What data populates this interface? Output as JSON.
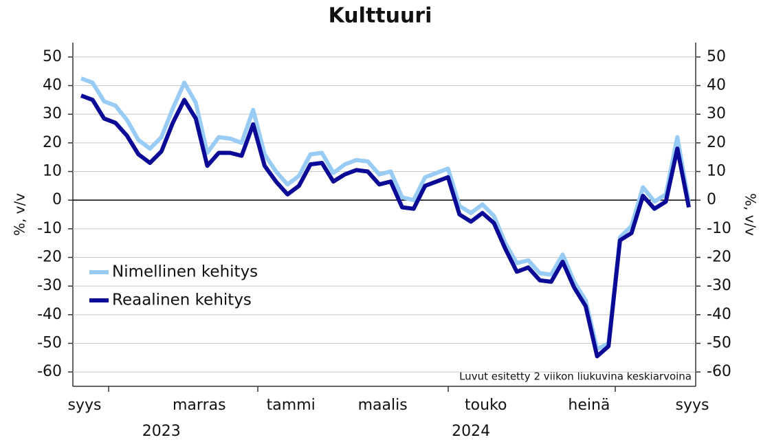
{
  "chart_data": {
    "type": "line",
    "title": "Kulttuuri",
    "ylabel": "%, v/v",
    "y2label": "%, v/v",
    "annotation": "Luvut esitetty 2 viikon liukuvina keskiarvoina",
    "categories": [
      "syys",
      null,
      null,
      null,
      null,
      null,
      null,
      null,
      null,
      null,
      "marras",
      null,
      null,
      null,
      null,
      null,
      null,
      null,
      "tammi",
      null,
      null,
      null,
      null,
      null,
      null,
      null,
      "maalis",
      null,
      null,
      null,
      null,
      null,
      null,
      null,
      null,
      "touko",
      null,
      null,
      null,
      null,
      null,
      null,
      null,
      null,
      "heinä",
      null,
      null,
      null,
      null,
      null,
      null,
      null,
      null,
      "syys"
    ],
    "years": [
      null,
      null,
      null,
      null,
      null,
      null,
      null,
      "2023",
      null,
      null,
      null,
      null,
      null,
      null,
      null,
      null,
      null,
      null,
      null,
      null,
      null,
      null,
      null,
      null,
      null,
      null,
      null,
      null,
      null,
      null,
      null,
      null,
      null,
      null,
      "2024",
      null,
      null,
      null,
      null,
      null,
      null,
      null,
      null,
      null,
      null,
      null,
      null,
      null,
      null,
      null,
      null,
      null,
      null,
      null
    ],
    "series": [
      {
        "name": "Nimellinen kehitys",
        "color": "#99ccf5",
        "values": [
          42.5,
          41,
          34.5,
          33,
          28,
          21,
          18,
          22,
          32,
          41,
          34,
          16.5,
          22,
          21.5,
          20,
          31.5,
          16,
          10,
          5.5,
          8.5,
          16,
          16.5,
          9.5,
          12.5,
          14,
          13.5,
          9,
          10,
          1,
          0,
          8,
          9.5,
          11,
          -2,
          -4.5,
          -1.5,
          -5.5,
          -15,
          -22,
          -21,
          -25.5,
          -26,
          -19,
          -28.5,
          -35,
          -52,
          -50,
          -13,
          -9,
          4.5,
          -0.5,
          2,
          22,
          -1
        ]
      },
      {
        "name": "Reaalinen kehitys",
        "color": "#0a0a96",
        "values": [
          36.5,
          35,
          28.5,
          27,
          22.5,
          16,
          13,
          17,
          27,
          35,
          28.5,
          12,
          16.5,
          16.5,
          15.5,
          26.5,
          12,
          6.5,
          2,
          5,
          12.5,
          13,
          6.5,
          9,
          10.5,
          10,
          5.5,
          6.5,
          -2.5,
          -3,
          5,
          6.5,
          8,
          -5,
          -7.5,
          -4.5,
          -8,
          -17,
          -25,
          -23.5,
          -28,
          -28.5,
          -21.5,
          -30.5,
          -37,
          -54.5,
          -51,
          -14,
          -11.5,
          1.5,
          -3,
          -0.5,
          18,
          -2.5
        ]
      }
    ],
    "ylim": [
      -65,
      55
    ],
    "yticks": [
      -60,
      -50,
      -40,
      -30,
      -20,
      -10,
      0,
      10,
      20,
      30,
      40,
      50
    ],
    "y2lim": [
      -65,
      55
    ],
    "y2ticks": [
      -60,
      -50,
      -40,
      -30,
      -20,
      -10,
      0,
      10,
      20,
      30,
      40,
      50
    ],
    "grid": true,
    "legend": "lower-left"
  }
}
